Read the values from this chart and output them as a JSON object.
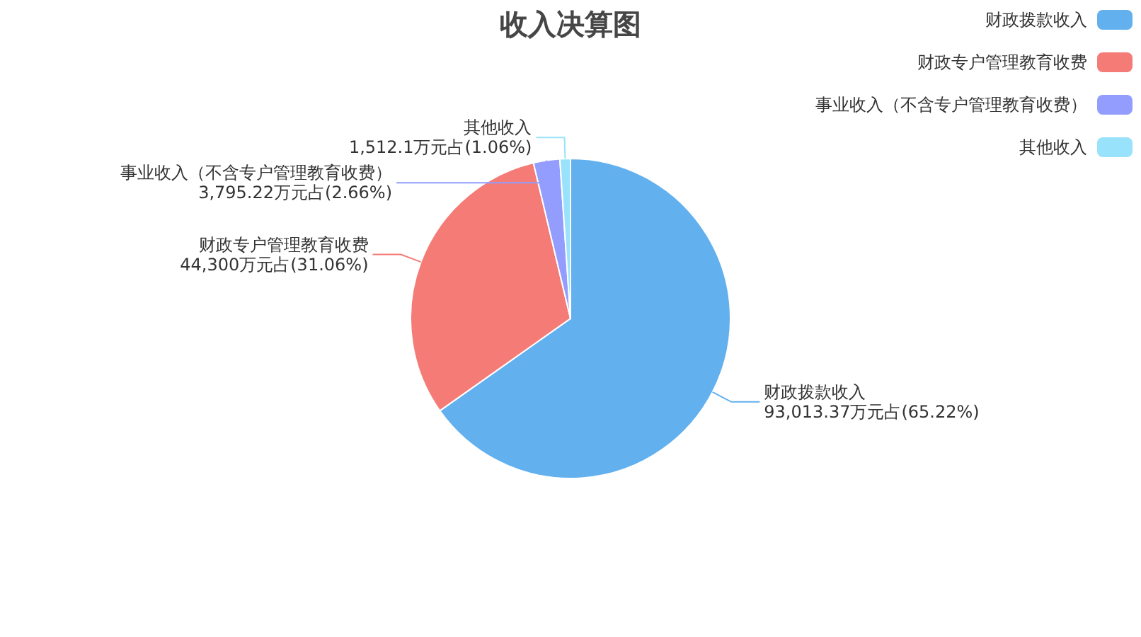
{
  "chart_data": {
    "type": "pie",
    "title": "收入决算图",
    "categories": [
      "财政拨款收入",
      "财政专户管理教育收费",
      "事业收入（不含专户管理教育收费）",
      "其他收入"
    ],
    "values": [
      93013.37,
      44300,
      3795.22,
      1512.1
    ],
    "value_labels": [
      "93,013.37万元占(65.22%)",
      "44,300万元占(31.06%)",
      "3,795.22万元占(2.66%)",
      "1,512.1万元占(1.06%)"
    ],
    "colors": [
      "#62b0ee",
      "#f47b76",
      "#929dfd",
      "#99e2fb"
    ],
    "legend": "top right"
  }
}
